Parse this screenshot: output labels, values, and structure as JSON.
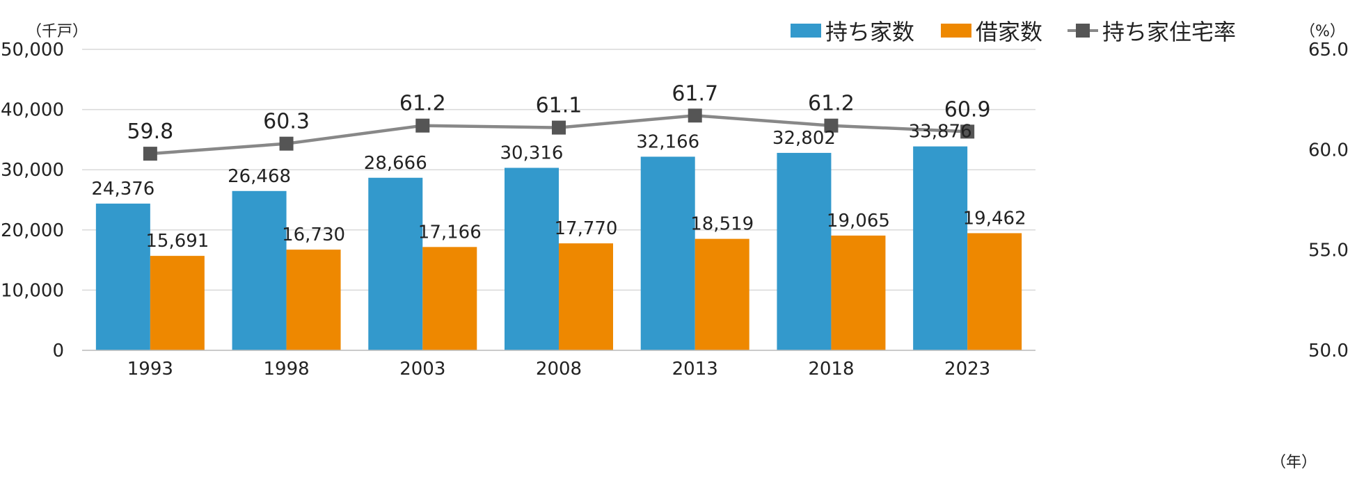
{
  "chart_data": {
    "type": "bar",
    "categories": [
      "1993",
      "1998",
      "2003",
      "2008",
      "2013",
      "2018",
      "2023"
    ],
    "series": [
      {
        "name": "持ち家数",
        "kind": "bar",
        "axis": "left",
        "color": "#3399CC",
        "values": [
          24376,
          26468,
          28666,
          30316,
          32166,
          32802,
          33876
        ],
        "labels": [
          "24,376",
          "26,468",
          "28,666",
          "30,316",
          "32,166",
          "32,802",
          "33,876"
        ]
      },
      {
        "name": "借家数",
        "kind": "bar",
        "axis": "left",
        "color": "#EE8800",
        "values": [
          15691,
          16730,
          17166,
          17770,
          18519,
          19065,
          19462
        ],
        "labels": [
          "15,691",
          "16,730",
          "17,166",
          "17,770",
          "18,519",
          "19,065",
          "19,462"
        ]
      },
      {
        "name": "持ち家住宅率",
        "kind": "line",
        "axis": "right",
        "color": "#888888",
        "marker_color": "#555555",
        "values": [
          59.8,
          60.3,
          61.2,
          61.1,
          61.7,
          61.2,
          60.9
        ],
        "labels": [
          "59.8",
          "60.3",
          "61.2",
          "61.1",
          "61.7",
          "61.2",
          "60.9"
        ]
      }
    ],
    "y_left": {
      "unit": "（千戸）",
      "min": 0,
      "max": 50000,
      "ticks": [
        0,
        10000,
        20000,
        30000,
        40000,
        50000
      ],
      "tick_labels": [
        "0",
        "10,000",
        "20,000",
        "30,000",
        "40,000",
        "50,000"
      ]
    },
    "y_right": {
      "unit": "（%）",
      "min": 50,
      "max": 65,
      "ticks": [
        50,
        55,
        60,
        65
      ],
      "tick_labels": [
        "50.0",
        "55.0",
        "60.0",
        "65.0"
      ]
    },
    "x_unit": "（年）",
    "grid": true,
    "legend": "top-right"
  }
}
